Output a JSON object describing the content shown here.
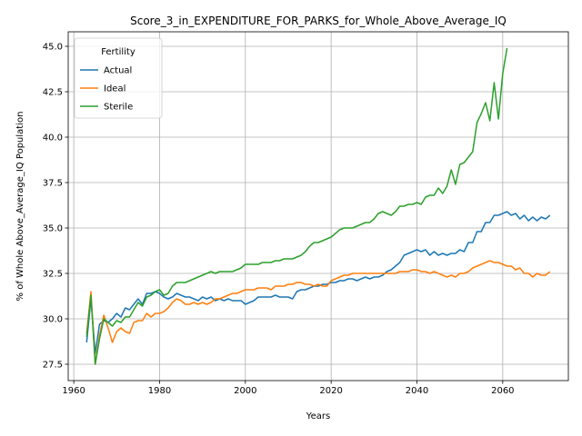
{
  "chart_data": {
    "type": "line",
    "title": "Score_3_in_EXPENDITURE_FOR_PARKS_for_Whole_Above_Average_IQ",
    "xlabel": "Years",
    "ylabel": "% of Whole Above_Average_IQ Population",
    "xlim": [
      1958.7,
      2075.3
    ],
    "ylim": [
      26.6,
      45.8
    ],
    "xticks": [
      1960,
      1980,
      2000,
      2020,
      2040,
      2060
    ],
    "yticks": [
      27.5,
      30.0,
      32.5,
      35.0,
      37.5,
      40.0,
      42.5,
      45.0
    ],
    "grid": true,
    "legend": {
      "title": "Fertility",
      "position": "top-left"
    },
    "x_start": 1963,
    "series": [
      {
        "name": "Actual",
        "color": "#1f77b4",
        "values": [
          28.7,
          31.1,
          28.1,
          29.7,
          29.9,
          29.8,
          30.0,
          30.3,
          30.1,
          30.6,
          30.5,
          30.8,
          31.1,
          30.8,
          31.4,
          31.4,
          31.5,
          31.4,
          31.2,
          31.1,
          31.2,
          31.4,
          31.3,
          31.2,
          31.2,
          31.1,
          31.0,
          31.2,
          31.1,
          31.2,
          31.0,
          31.1,
          31.0,
          31.1,
          31.0,
          31.0,
          31.0,
          30.8,
          30.9,
          31.0,
          31.2,
          31.2,
          31.2,
          31.2,
          31.3,
          31.2,
          31.2,
          31.2,
          31.1,
          31.5,
          31.6,
          31.6,
          31.7,
          31.8,
          31.8,
          31.9,
          31.9,
          32.0,
          32.0,
          32.1,
          32.1,
          32.2,
          32.2,
          32.1,
          32.2,
          32.3,
          32.2,
          32.3,
          32.3,
          32.4,
          32.6,
          32.7,
          32.9,
          33.1,
          33.5,
          33.6,
          33.7,
          33.8,
          33.7,
          33.8,
          33.5,
          33.7,
          33.5,
          33.6,
          33.5,
          33.6,
          33.6,
          33.8,
          33.7,
          34.2,
          34.2,
          34.8,
          34.8,
          35.3,
          35.3,
          35.7,
          35.7,
          35.8,
          35.9,
          35.7,
          35.8,
          35.5,
          35.7,
          35.4,
          35.6,
          35.4,
          35.6,
          35.5,
          35.7
        ]
      },
      {
        "name": "Ideal",
        "color": "#ff7f0e",
        "values": [
          29.2,
          31.5,
          27.5,
          29.1,
          30.2,
          29.5,
          28.7,
          29.3,
          29.5,
          29.3,
          29.2,
          29.8,
          29.9,
          29.9,
          30.3,
          30.1,
          30.3,
          30.3,
          30.4,
          30.6,
          30.9,
          31.1,
          31.0,
          30.8,
          30.8,
          30.9,
          30.8,
          30.9,
          30.8,
          30.9,
          31.1,
          31.1,
          31.2,
          31.3,
          31.4,
          31.4,
          31.5,
          31.6,
          31.6,
          31.6,
          31.7,
          31.7,
          31.7,
          31.6,
          31.8,
          31.8,
          31.8,
          31.9,
          31.9,
          32.0,
          32.0,
          31.9,
          31.9,
          31.8,
          31.9,
          31.8,
          31.8,
          32.1,
          32.2,
          32.3,
          32.4,
          32.4,
          32.5,
          32.5,
          32.5,
          32.5,
          32.5,
          32.5,
          32.5,
          32.5,
          32.5,
          32.5,
          32.5,
          32.6,
          32.6,
          32.6,
          32.7,
          32.7,
          32.6,
          32.6,
          32.5,
          32.6,
          32.5,
          32.4,
          32.3,
          32.4,
          32.3,
          32.5,
          32.5,
          32.6,
          32.8,
          32.9,
          33.0,
          33.1,
          33.2,
          33.1,
          33.1,
          33.0,
          32.9,
          32.9,
          32.7,
          32.8,
          32.5,
          32.5,
          32.3,
          32.5,
          32.4,
          32.4,
          32.6
        ]
      },
      {
        "name": "Sterile",
        "color": "#2ca02c",
        "values": [
          29.0,
          31.3,
          27.5,
          28.9,
          30.0,
          29.8,
          29.6,
          29.9,
          29.8,
          30.1,
          30.1,
          30.5,
          30.9,
          30.7,
          31.2,
          31.3,
          31.5,
          31.6,
          31.3,
          31.4,
          31.8,
          32.0,
          32.0,
          32.0,
          32.1,
          32.2,
          32.3,
          32.4,
          32.5,
          32.6,
          32.5,
          32.6,
          32.6,
          32.6,
          32.6,
          32.7,
          32.8,
          33.0,
          33.0,
          33.0,
          33.0,
          33.1,
          33.1,
          33.1,
          33.2,
          33.2,
          33.3,
          33.3,
          33.3,
          33.4,
          33.5,
          33.7,
          34.0,
          34.2,
          34.2,
          34.3,
          34.4,
          34.5,
          34.7,
          34.9,
          35.0,
          35.0,
          35.0,
          35.1,
          35.2,
          35.3,
          35.3,
          35.5,
          35.8,
          35.9,
          35.8,
          35.7,
          35.9,
          36.2,
          36.2,
          36.3,
          36.3,
          36.4,
          36.3,
          36.7,
          36.8,
          36.8,
          37.2,
          36.9,
          37.3,
          38.2,
          37.4,
          38.5,
          38.6,
          38.9,
          39.2,
          40.8,
          41.3,
          41.9,
          40.9,
          43.0,
          41.0,
          43.5,
          44.9
        ]
      }
    ]
  }
}
